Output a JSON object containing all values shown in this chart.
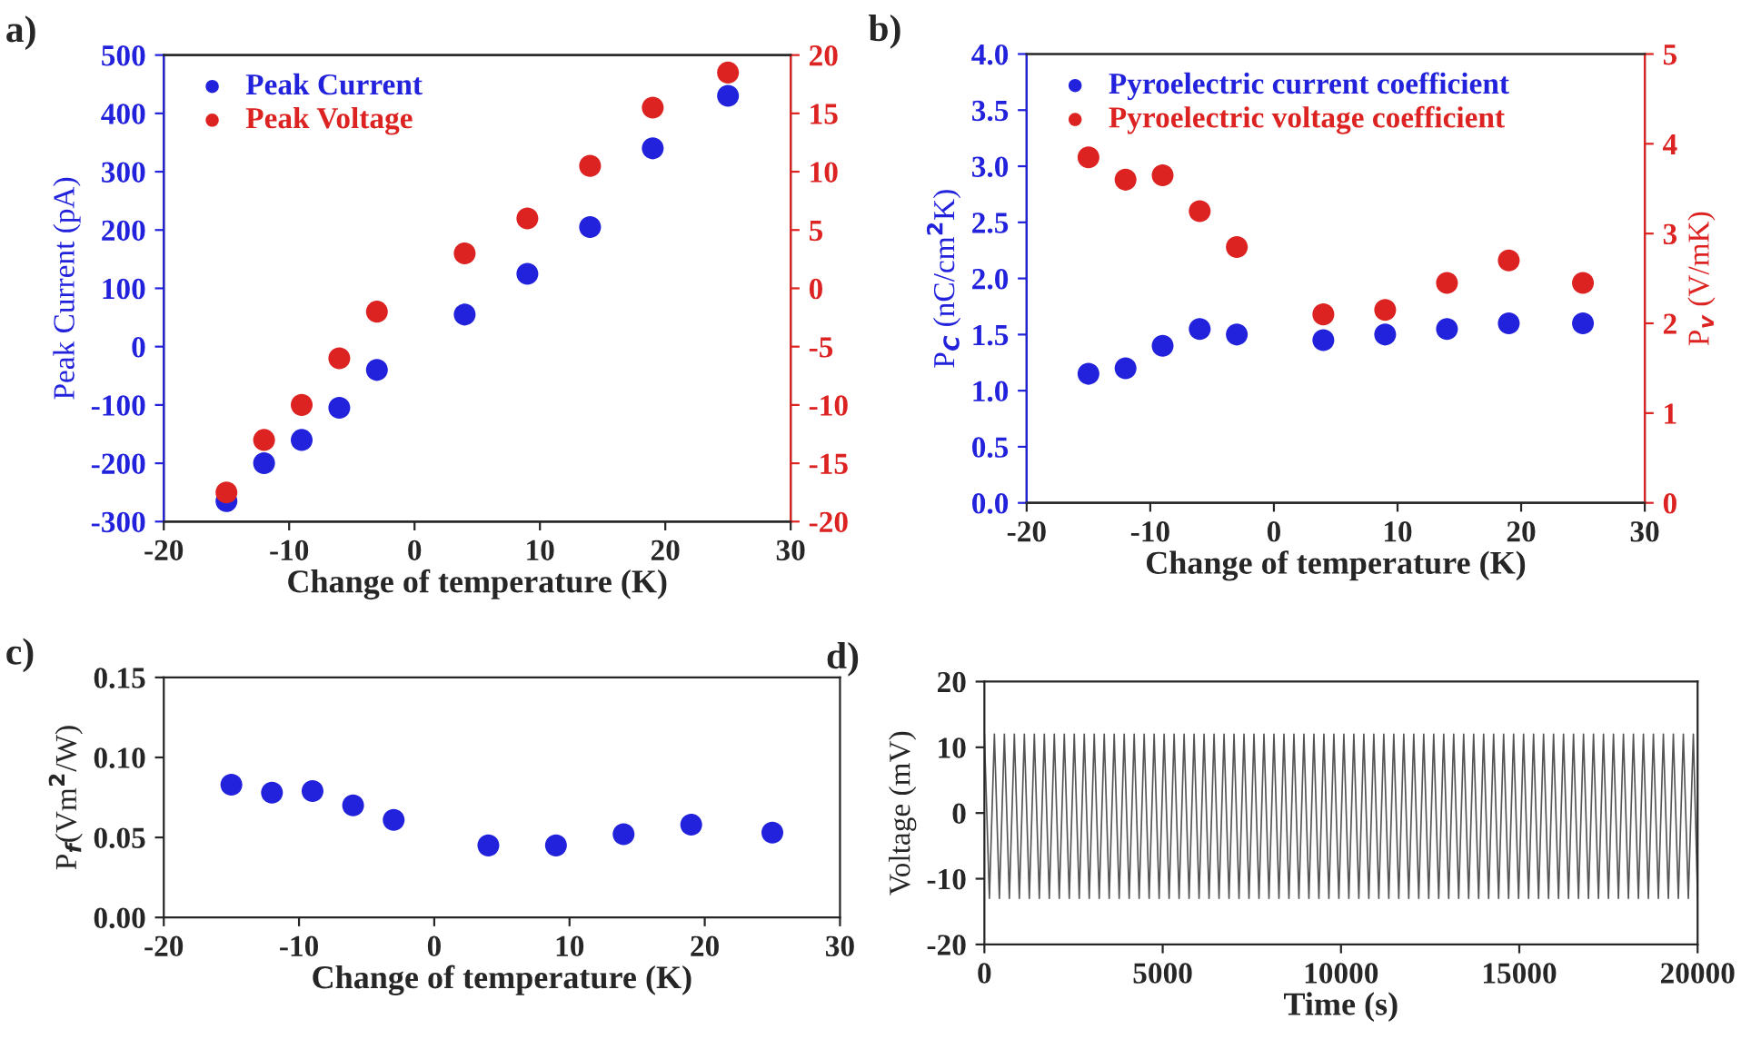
{
  "chart_data": [
    {
      "type": "scatter",
      "annotations": [
        "a)"
      ],
      "xlabel": "Change of temperature (K)",
      "ylabel": "Peak Current (pA)",
      "x": [
        -15,
        -12,
        -9,
        -6,
        -3,
        4,
        9,
        14,
        19,
        25
      ],
      "series": [
        {
          "name": "Peak Current",
          "color": "#2222dd",
          "values": [
            -265,
            -200,
            -160,
            -105,
            -40,
            55,
            125,
            205,
            340,
            430
          ]
        },
        {
          "name": "Peak Voltage",
          "color": "#dd2222",
          "axis": "y2",
          "values": [
            -17.5,
            -13,
            -10,
            -6,
            -2,
            3,
            6,
            10.5,
            15.5,
            18.5
          ]
        }
      ],
      "xlim": [
        -20,
        30
      ],
      "xticks": [
        -20,
        -10,
        0,
        10,
        20,
        30
      ],
      "ylim": [
        -300,
        500
      ],
      "yticks": [
        -300,
        -200,
        -100,
        0,
        100,
        200,
        300,
        400,
        500
      ],
      "y2lim": [
        -20,
        20
      ],
      "y2ticks": [
        -20,
        -15,
        -10,
        -5,
        0,
        5,
        10,
        15,
        20
      ],
      "legend": "top left",
      "marker": "circle",
      "grid": false
    },
    {
      "type": "scatter",
      "annotations": [
        "b)"
      ],
      "xlabel": "Change of temperature (K)",
      "ylabel": "P$_{C}$ (nC/cm$^{2}$K)",
      "y2label": "P$_{v}$ (V/mK)",
      "x": [
        -15,
        -12,
        -9,
        -6,
        -3,
        4,
        9,
        14,
        19,
        25
      ],
      "series": [
        {
          "name": "Pyroelectric current coefficient",
          "color": "#2222dd",
          "values": [
            1.15,
            1.2,
            1.4,
            1.55,
            1.5,
            1.45,
            1.5,
            1.55,
            1.6,
            1.6
          ]
        },
        {
          "name": "Pyroelectric voltage coefficient",
          "color": "#dd2222",
          "axis": "y2",
          "values": [
            3.85,
            3.6,
            3.65,
            3.25,
            2.85,
            2.1,
            2.15,
            2.45,
            2.7,
            2.45
          ]
        }
      ],
      "xlim": [
        -20,
        30
      ],
      "xticks": [
        -20,
        -10,
        0,
        10,
        20,
        30
      ],
      "ylim": [
        0,
        4
      ],
      "yticks": [
        {
          "value": 0,
          "label": "0.0"
        },
        {
          "value": 0.5,
          "label": "0.5"
        },
        {
          "value": 1,
          "label": "1.0"
        },
        {
          "value": 1.5,
          "label": "1.5"
        },
        {
          "value": 2,
          "label": "2.0"
        },
        {
          "value": 2.5,
          "label": "2.5"
        },
        {
          "value": 3,
          "label": "3.0"
        },
        {
          "value": 3.5,
          "label": "3.5"
        },
        {
          "value": 4,
          "label": "4.0"
        }
      ],
      "y2lim": [
        0,
        5
      ],
      "y2ticks": [
        0,
        1,
        2,
        3,
        4,
        5
      ],
      "legend": "top left",
      "marker": "circle",
      "grid": false
    },
    {
      "type": "scatter",
      "annotations": [
        "c)"
      ],
      "xlabel": "Change of temperature (K)",
      "ylabel": "P$_{f}$(Vm$^{2}$/W)",
      "x": [
        -15,
        -12,
        -9,
        -6,
        -3,
        4,
        9,
        14,
        19,
        25
      ],
      "series": [
        {
          "color": "#2222dd",
          "values": [
            0.083,
            0.078,
            0.079,
            0.07,
            0.061,
            0.045,
            0.045,
            0.052,
            0.058,
            0.053
          ]
        }
      ],
      "xlim": [
        -20,
        30
      ],
      "xticks": [
        -20,
        -10,
        0,
        10,
        20,
        30
      ],
      "ylim": [
        0,
        0.15
      ],
      "yticks": [
        {
          "value": 0,
          "label": "0.00"
        },
        {
          "value": 0.05,
          "label": "0.05"
        },
        {
          "value": 0.1,
          "label": "0.10"
        },
        {
          "value": 0.15,
          "label": "0.15"
        }
      ],
      "marker": "circle",
      "grid": false
    },
    {
      "type": "line",
      "annotations": [
        "d)"
      ],
      "xlabel": "Time (s)",
      "ylabel": "Voltage (mV)",
      "series": [
        {
          "color": "#555555",
          "x": [
            0,
            140,
            280,
            420,
            560,
            700,
            840,
            980,
            1120,
            1260,
            1400,
            1540,
            1680,
            1820,
            1960,
            2100,
            2240,
            2380,
            2520,
            2660,
            2800,
            2940,
            3080,
            3220,
            3360,
            3500,
            3640,
            3780,
            3920,
            4060,
            4200,
            4340,
            4480,
            4620,
            4760,
            4900,
            5040,
            5180,
            5320,
            5460,
            5600,
            5740,
            5880,
            6020,
            6160,
            6300,
            6440,
            6580,
            6720,
            6860,
            7000,
            7140,
            7280,
            7420,
            7560,
            7700,
            7840,
            7980,
            8120,
            8260,
            8400,
            8540,
            8680,
            8820,
            8960,
            9100,
            9240,
            9380,
            9520,
            9660,
            9800,
            9940,
            10080,
            10220,
            10360,
            10500,
            10640,
            10780,
            10920,
            11060,
            11200,
            11340,
            11480,
            11620,
            11760,
            11900,
            12040,
            12180,
            12320,
            12460,
            12600,
            12740,
            12880,
            13020,
            13160,
            13300,
            13440,
            13580,
            13720,
            13860,
            14000,
            14140,
            14280,
            14420,
            14560,
            14700,
            14840,
            14980,
            15120,
            15260,
            15400,
            15540,
            15680,
            15820,
            15960,
            16100,
            16240,
            16380,
            16520,
            16660,
            16800,
            16940,
            17080,
            17220,
            17360,
            17500,
            17640,
            17780,
            17920,
            18060,
            18200,
            18340,
            18480,
            18620,
            18760,
            18900,
            19040,
            19180,
            19320,
            19460,
            19600,
            19740,
            19880,
            20000
          ],
          "values": [
            12,
            -13,
            12,
            -13,
            12,
            -13,
            12,
            -13,
            12,
            -13,
            12,
            -13,
            12,
            -13,
            12,
            -13,
            12,
            -13,
            12,
            -13,
            12,
            -13,
            12,
            -13,
            12,
            -13,
            12,
            -13,
            12,
            -13,
            12,
            -13,
            12,
            -13,
            12,
            -13,
            12,
            -13,
            12,
            -13,
            12,
            -13,
            12,
            -13,
            12,
            -13,
            12,
            -13,
            12,
            -13,
            12,
            -13,
            12,
            -13,
            12,
            -13,
            12,
            -13,
            12,
            -13,
            12,
            -13,
            12,
            -13,
            12,
            -13,
            12,
            -13,
            12,
            -13,
            12,
            -13,
            12,
            -13,
            12,
            -13,
            12,
            -13,
            12,
            -13,
            12,
            -13,
            12,
            -13,
            12,
            -13,
            12,
            -13,
            12,
            -13,
            12,
            -13,
            12,
            -13,
            12,
            -13,
            12,
            -13,
            12,
            -13,
            12,
            -13,
            12,
            -13,
            12,
            -13,
            12,
            -13,
            12,
            -13,
            12,
            -13,
            12,
            -13,
            12,
            -13,
            12,
            -13,
            12,
            -13,
            12,
            -13,
            12,
            -13,
            12,
            -13,
            12,
            -13,
            12,
            -13,
            12,
            -13,
            12,
            -13,
            12,
            -13,
            12,
            -13,
            12,
            -13,
            12,
            -13,
            12,
            -13
          ]
        }
      ],
      "xlim": [
        0,
        20000
      ],
      "xticks": [
        0,
        5000,
        10000,
        15000,
        20000
      ],
      "ylim": [
        -20,
        20
      ],
      "yticks": [
        -20,
        -10,
        0,
        10,
        20
      ],
      "marker": "none",
      "line_style": "solid",
      "grid": false
    }
  ]
}
